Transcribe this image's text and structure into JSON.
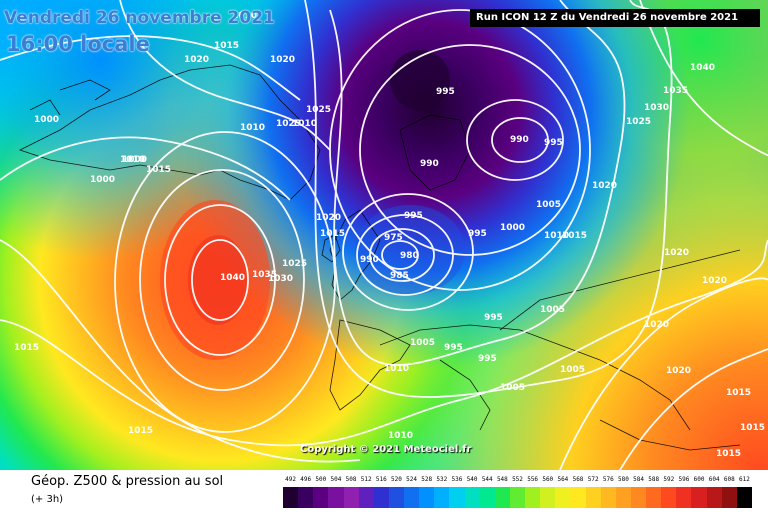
{
  "header": {
    "date": "Vendredi 26 novembre 2021",
    "time": "16:00 locale",
    "run": "Run ICON 12 Z du Vendredi 26 novembre 2021"
  },
  "footer": {
    "title": "Géop. Z500 & pression au sol",
    "subtitle": "(+ 3h)",
    "copyright": "Copyright © 2021 Meteociel.fr"
  },
  "legend": {
    "labels": [
      "492",
      "496",
      "500",
      "504",
      "508",
      "512",
      "516",
      "520",
      "524",
      "528",
      "532",
      "536",
      "540",
      "544",
      "548",
      "552",
      "556",
      "560",
      "564",
      "568",
      "572",
      "576",
      "580",
      "584",
      "588",
      "592",
      "596",
      "600",
      "604",
      "608",
      "612"
    ],
    "colors": [
      "#200030",
      "#3a0060",
      "#5a0080",
      "#7a10a0",
      "#9020b0",
      "#6020c0",
      "#3030d0",
      "#2050e0",
      "#1070f0",
      "#0090ff",
      "#00b0ff",
      "#00d0f0",
      "#00e0c0",
      "#00e890",
      "#20e850",
      "#60ec30",
      "#a0f020",
      "#d0f020",
      "#f0f020",
      "#ffe820",
      "#ffd020",
      "#ffb820",
      "#ffa020",
      "#ff8820",
      "#ff6a20",
      "#ff4a20",
      "#f03020",
      "#d82020",
      "#b81818",
      "#901010",
      "#000000"
    ]
  },
  "map": {
    "pressure_labels": [
      {
        "text": "1010"
      },
      {
        "text": "1020"
      },
      {
        "text": "1015"
      },
      {
        "text": "1020"
      },
      {
        "text": "1000"
      },
      {
        "text": "1010"
      },
      {
        "text": "1025"
      },
      {
        "text": "1025"
      },
      {
        "text": "1010"
      },
      {
        "text": "1000"
      },
      {
        "text": "1010"
      },
      {
        "text": "1015"
      },
      {
        "text": "1000"
      },
      {
        "text": "1020"
      },
      {
        "text": "1015"
      },
      {
        "text": "1025"
      },
      {
        "text": "1035"
      },
      {
        "text": "1030"
      },
      {
        "text": "1040"
      },
      {
        "text": "1015"
      },
      {
        "text": "1015"
      },
      {
        "text": "995"
      },
      {
        "text": "990"
      },
      {
        "text": "995"
      },
      {
        "text": "990"
      },
      {
        "text": "995"
      },
      {
        "text": "975"
      },
      {
        "text": "980"
      },
      {
        "text": "990"
      },
      {
        "text": "985"
      },
      {
        "text": "995"
      },
      {
        "text": "1000"
      },
      {
        "text": "1005"
      },
      {
        "text": "1010"
      },
      {
        "text": "1015"
      },
      {
        "text": "1020"
      },
      {
        "text": "1025"
      },
      {
        "text": "1030"
      },
      {
        "text": "1035"
      },
      {
        "text": "1040"
      },
      {
        "text": "995"
      },
      {
        "text": "1005"
      },
      {
        "text": "995"
      },
      {
        "text": "995"
      },
      {
        "text": "1005"
      },
      {
        "text": "1005"
      },
      {
        "text": "1005"
      },
      {
        "text": "1010"
      },
      {
        "text": "1010"
      },
      {
        "text": "1020"
      },
      {
        "text": "1020"
      },
      {
        "text": "1020"
      },
      {
        "text": "1020"
      },
      {
        "text": "1015"
      },
      {
        "text": "1015"
      },
      {
        "text": "1015"
      }
    ]
  }
}
